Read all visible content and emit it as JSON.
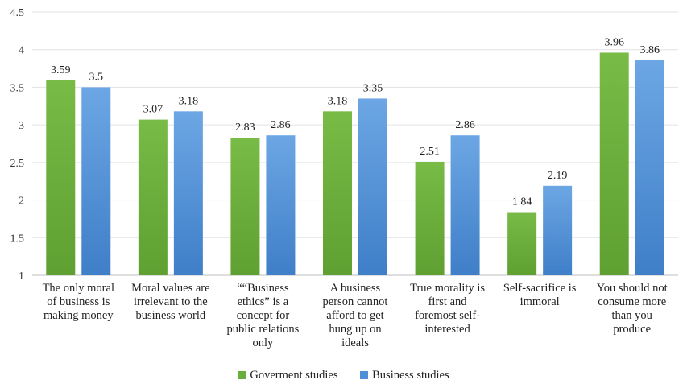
{
  "chart_data": {
    "type": "bar",
    "categories": [
      "The only moral of business is making money",
      "Moral values are irrelevant to the business world",
      "““Business ethics” is a concept for public relations only",
      "A business person cannot afford to get hung up on ideals",
      "True morality is first and foremost self-interested",
      "Self-sacrifice is immoral",
      "You should not consume more than you produce"
    ],
    "category_lines": [
      [
        "The only moral",
        "of business is",
        "making money"
      ],
      [
        "Moral values are",
        "irrelevant to the",
        "business world"
      ],
      [
        "““Business",
        "ethics” is a",
        "concept for",
        "public relations",
        "only"
      ],
      [
        "A business",
        "person cannot",
        "afford to get",
        "hung up on",
        "ideals"
      ],
      [
        "True morality is",
        "first and",
        "foremost self-",
        "interested"
      ],
      [
        "Self-sacrifice is",
        "immoral"
      ],
      [
        "You should not",
        "consume more",
        "than you",
        "produce"
      ]
    ],
    "series": [
      {
        "name": "Goverment studies",
        "color": "#6aaf3c",
        "values": [
          3.59,
          3.07,
          2.83,
          3.18,
          2.51,
          1.84,
          3.96
        ],
        "labels": [
          "3.59",
          "3.07",
          "2.83",
          "3.18",
          "2.51",
          "1.84",
          "3.96"
        ]
      },
      {
        "name": "Business studies",
        "color": "#4f8fd6",
        "values": [
          3.5,
          3.18,
          2.86,
          3.35,
          2.86,
          2.19,
          3.86
        ],
        "labels": [
          "3.5",
          "3.18",
          "2.86",
          "3.35",
          "2.86",
          "2.19",
          "3.86"
        ]
      }
    ],
    "yticks": [
      "1",
      "1.5",
      "2",
      "2.5",
      "3",
      "3.5",
      "4",
      "4.5"
    ],
    "ylim": [
      1,
      4.5
    ],
    "grid": true,
    "legend_position": "bottom"
  }
}
